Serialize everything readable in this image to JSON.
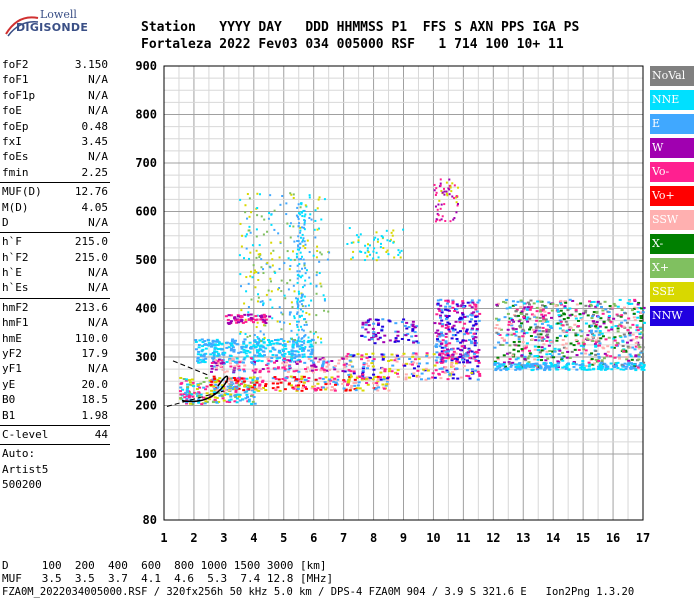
{
  "logo": {
    "line1": "Lowell",
    "line2": "DIGISONDE"
  },
  "header": {
    "top": "Station   YYYY DAY   DDD HHMMSS P1  FFS S AXN PPS IGA PS",
    "bottom": "Fortaleza 2022 Fev03 034 005000 RSF   1 714 100 10+ 11"
  },
  "params": [
    {
      "label": "foF2",
      "value": "3.150"
    },
    {
      "label": "foF1",
      "value": "N/A"
    },
    {
      "label": "foF1p",
      "value": "N/A"
    },
    {
      "label": "foE",
      "value": "N/A"
    },
    {
      "label": "foEp",
      "value": "0.48"
    },
    {
      "label": "fxI",
      "value": "3.45"
    },
    {
      "label": "foEs",
      "value": "N/A"
    },
    {
      "label": "fmin",
      "value": "2.25"
    }
  ],
  "params2": [
    {
      "label": "MUF(D)",
      "value": "12.76"
    },
    {
      "label": "M(D)",
      "value": "4.05"
    },
    {
      "label": "D",
      "value": "N/A"
    }
  ],
  "params3": [
    {
      "label": "h`F",
      "value": "215.0"
    },
    {
      "label": "h`F2",
      "value": "215.0"
    },
    {
      "label": "h`E",
      "value": "N/A"
    },
    {
      "label": "h`Es",
      "value": "N/A"
    }
  ],
  "params4": [
    {
      "label": "hmF2",
      "value": "213.6"
    },
    {
      "label": "hmF1",
      "value": "N/A"
    },
    {
      "label": "hmE",
      "value": "110.0"
    },
    {
      "label": "yF2",
      "value": "17.9"
    },
    {
      "label": "yF1",
      "value": "N/A"
    },
    {
      "label": "yE",
      "value": "20.0"
    },
    {
      "label": "B0",
      "value": "18.5"
    },
    {
      "label": "B1",
      "value": "1.98"
    }
  ],
  "clevel": {
    "label": "C-level",
    "value": "44"
  },
  "auto": {
    "l1": "Auto:",
    "l2": "Artist5",
    "l3": "500200"
  },
  "legend": [
    {
      "label": "NoVal",
      "color": "#808080"
    },
    {
      "label": "NNE",
      "color": "#00e0ff"
    },
    {
      "label": "E",
      "color": "#40a8ff"
    },
    {
      "label": "W",
      "color": "#a000b0"
    },
    {
      "label": "Vo-",
      "color": "#ff2090"
    },
    {
      "label": "Vo+",
      "color": "#ff0000"
    },
    {
      "label": "SSW",
      "color": "#ffb0b0"
    },
    {
      "label": "X-",
      "color": "#008000"
    },
    {
      "label": "X+",
      "color": "#80c060"
    },
    {
      "label": "SSE",
      "color": "#d8d800"
    },
    {
      "label": "NNW",
      "color": "#2000e0"
    }
  ],
  "chart_data": {
    "type": "scatter",
    "xlim": [
      1,
      17
    ],
    "ylim": [
      80,
      900
    ],
    "x_ticks": [
      "1",
      "2",
      "3",
      "4",
      "5",
      "6",
      "7",
      "8",
      "9",
      "10",
      "11",
      "12",
      "13",
      "14",
      "15",
      "16",
      "17"
    ],
    "y_ticks": [
      "80",
      "100",
      "200",
      "300",
      "400",
      "500",
      "600",
      "700",
      "800",
      "900"
    ],
    "grid": true,
    "legend_position": "right"
  },
  "bottom": {
    "d_row": "D     100  200  400  600  800 1000 1500 3000 [km]",
    "muf_row": "MUF   3.5  3.5  3.7  4.1  4.6  5.3  7.4 12.8 [MHz]",
    "footer": "FZA0M_2022034005000.RSF / 320fx256h 50 kHz 5.0 km / DPS-4 FZA0M 904 / 3.9 S 321.6 E   Ion2Png 1.3.20"
  }
}
